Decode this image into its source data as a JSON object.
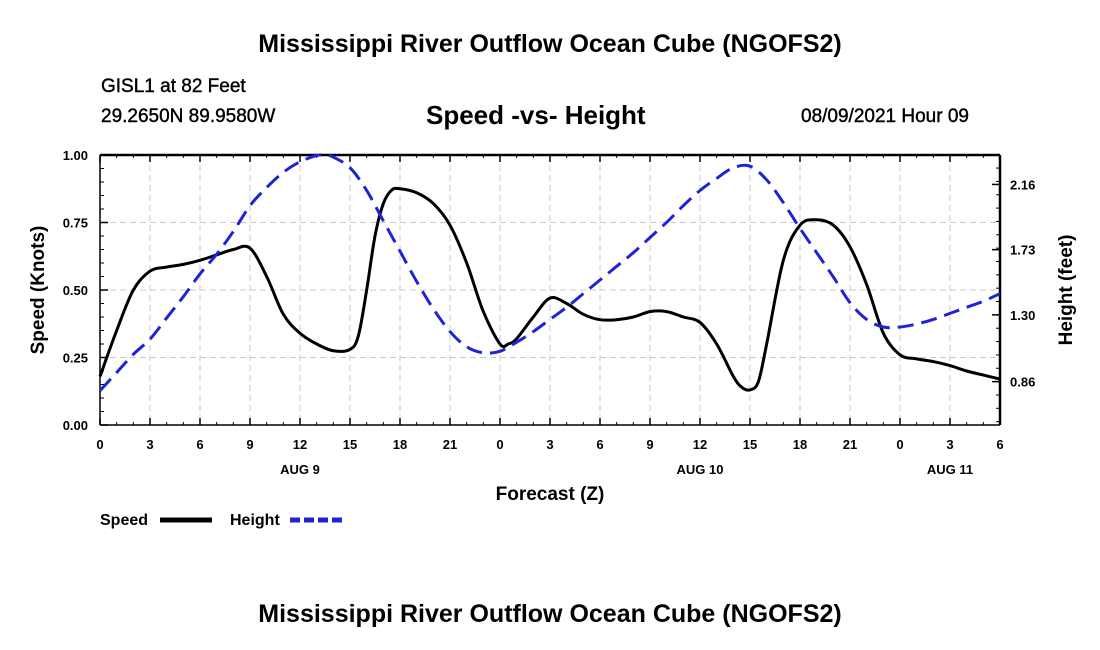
{
  "header": {
    "title": "Mississippi River Outflow Ocean Cube (NGOFS2)",
    "station": "GISL1 at 82 Feet",
    "coordinates": "29.2650N  89.9580W",
    "subtitle": "Speed -vs- Height",
    "datetime": "08/09/2021 Hour 09"
  },
  "footer": {
    "title": "Mississippi River Outflow Ocean Cube (NGOFS2)"
  },
  "chart_data": {
    "type": "line",
    "title": "Speed -vs- Height",
    "xlabel": "Forecast (Z)",
    "ylabel": "Speed (Knots)",
    "y2label": "Height (feet)",
    "x_unit": "hours from 00Z Aug 9",
    "xlim": [
      0,
      54
    ],
    "ylim": [
      0,
      1
    ],
    "y2lim": [
      0.574,
      2.354
    ],
    "grid": true,
    "x_ticks": [
      0,
      3,
      6,
      9,
      12,
      15,
      18,
      21,
      24,
      27,
      30,
      33,
      36,
      39,
      42,
      45,
      48,
      51,
      54
    ],
    "x_tick_labels": [
      "0",
      "3",
      "6",
      "9",
      "12",
      "15",
      "18",
      "21",
      "0",
      "3",
      "6",
      "9",
      "12",
      "15",
      "18",
      "21",
      "0",
      "3",
      "6"
    ],
    "day_labels": [
      {
        "x": 12,
        "label": "AUG 9"
      },
      {
        "x": 36,
        "label": "AUG 10"
      },
      {
        "x": 51,
        "label": "AUG 11"
      }
    ],
    "y_ticks": [
      0,
      0.25,
      0.5,
      0.75,
      1.0
    ],
    "y_tick_labels": [
      "0.00",
      "0.25",
      "0.50",
      "0.75",
      "1.00"
    ],
    "y2_ticks": [
      0.86,
      1.3,
      1.73,
      2.16
    ],
    "y2_tick_labels": [
      "0.86",
      "1.30",
      "1.73",
      "2.16"
    ],
    "legend_position": "bottom-left",
    "series": [
      {
        "name": "Speed",
        "axis": "left",
        "color": "#000000",
        "dash": "solid",
        "x": [
          0,
          1,
          2,
          3,
          4,
          5,
          6,
          7,
          8,
          9,
          10,
          11,
          12,
          13,
          14,
          15,
          15.5,
          16,
          16.5,
          17,
          17.5,
          18,
          19,
          20,
          21,
          22,
          23,
          24,
          24.5,
          25,
          26,
          27,
          28,
          29,
          30,
          31,
          32,
          33,
          34,
          35,
          36,
          37,
          38,
          38.5,
          39,
          39.5,
          40,
          41,
          42,
          43,
          44,
          45,
          46,
          47,
          48,
          49,
          50,
          51,
          52,
          53,
          54
        ],
        "values": [
          0.18,
          0.35,
          0.5,
          0.57,
          0.585,
          0.595,
          0.61,
          0.63,
          0.65,
          0.655,
          0.55,
          0.41,
          0.34,
          0.3,
          0.275,
          0.28,
          0.33,
          0.5,
          0.7,
          0.82,
          0.87,
          0.875,
          0.86,
          0.82,
          0.74,
          0.6,
          0.42,
          0.3,
          0.3,
          0.32,
          0.4,
          0.47,
          0.45,
          0.41,
          0.39,
          0.39,
          0.4,
          0.42,
          0.42,
          0.4,
          0.38,
          0.3,
          0.18,
          0.14,
          0.13,
          0.16,
          0.3,
          0.61,
          0.74,
          0.76,
          0.74,
          0.66,
          0.52,
          0.34,
          0.26,
          0.245,
          0.235,
          0.22,
          0.2,
          0.185,
          0.17
        ]
      },
      {
        "name": "Height",
        "axis": "right",
        "color": "#1f23d6",
        "dash": "dashed",
        "x": [
          0,
          1,
          2,
          3,
          4,
          5,
          6,
          7,
          8,
          9,
          10,
          11,
          12,
          13,
          13.5,
          14,
          15,
          16,
          17,
          18,
          19,
          20,
          21,
          22,
          23,
          24,
          25,
          26,
          27,
          28,
          29,
          30,
          31,
          32,
          33,
          34,
          35,
          36,
          37,
          38,
          39,
          40,
          41,
          42,
          43,
          44,
          45,
          46,
          47,
          48,
          49,
          50,
          51,
          52,
          53,
          54
        ],
        "values": [
          0.8,
          0.92,
          1.04,
          1.14,
          1.28,
          1.42,
          1.57,
          1.7,
          1.85,
          2.02,
          2.14,
          2.24,
          2.31,
          2.35,
          2.355,
          2.34,
          2.27,
          2.12,
          1.92,
          1.72,
          1.52,
          1.34,
          1.19,
          1.09,
          1.05,
          1.06,
          1.12,
          1.19,
          1.27,
          1.35,
          1.44,
          1.53,
          1.62,
          1.71,
          1.81,
          1.91,
          2.02,
          2.12,
          2.2,
          2.27,
          2.28,
          2.19,
          2.04,
          1.87,
          1.71,
          1.55,
          1.38,
          1.27,
          1.22,
          1.22,
          1.24,
          1.27,
          1.31,
          1.35,
          1.39,
          1.44
        ]
      }
    ],
    "legend": [
      {
        "label": "Speed",
        "color": "#000000",
        "dash": "solid"
      },
      {
        "label": "Height",
        "color": "#1f23d6",
        "dash": "dashed"
      }
    ]
  }
}
